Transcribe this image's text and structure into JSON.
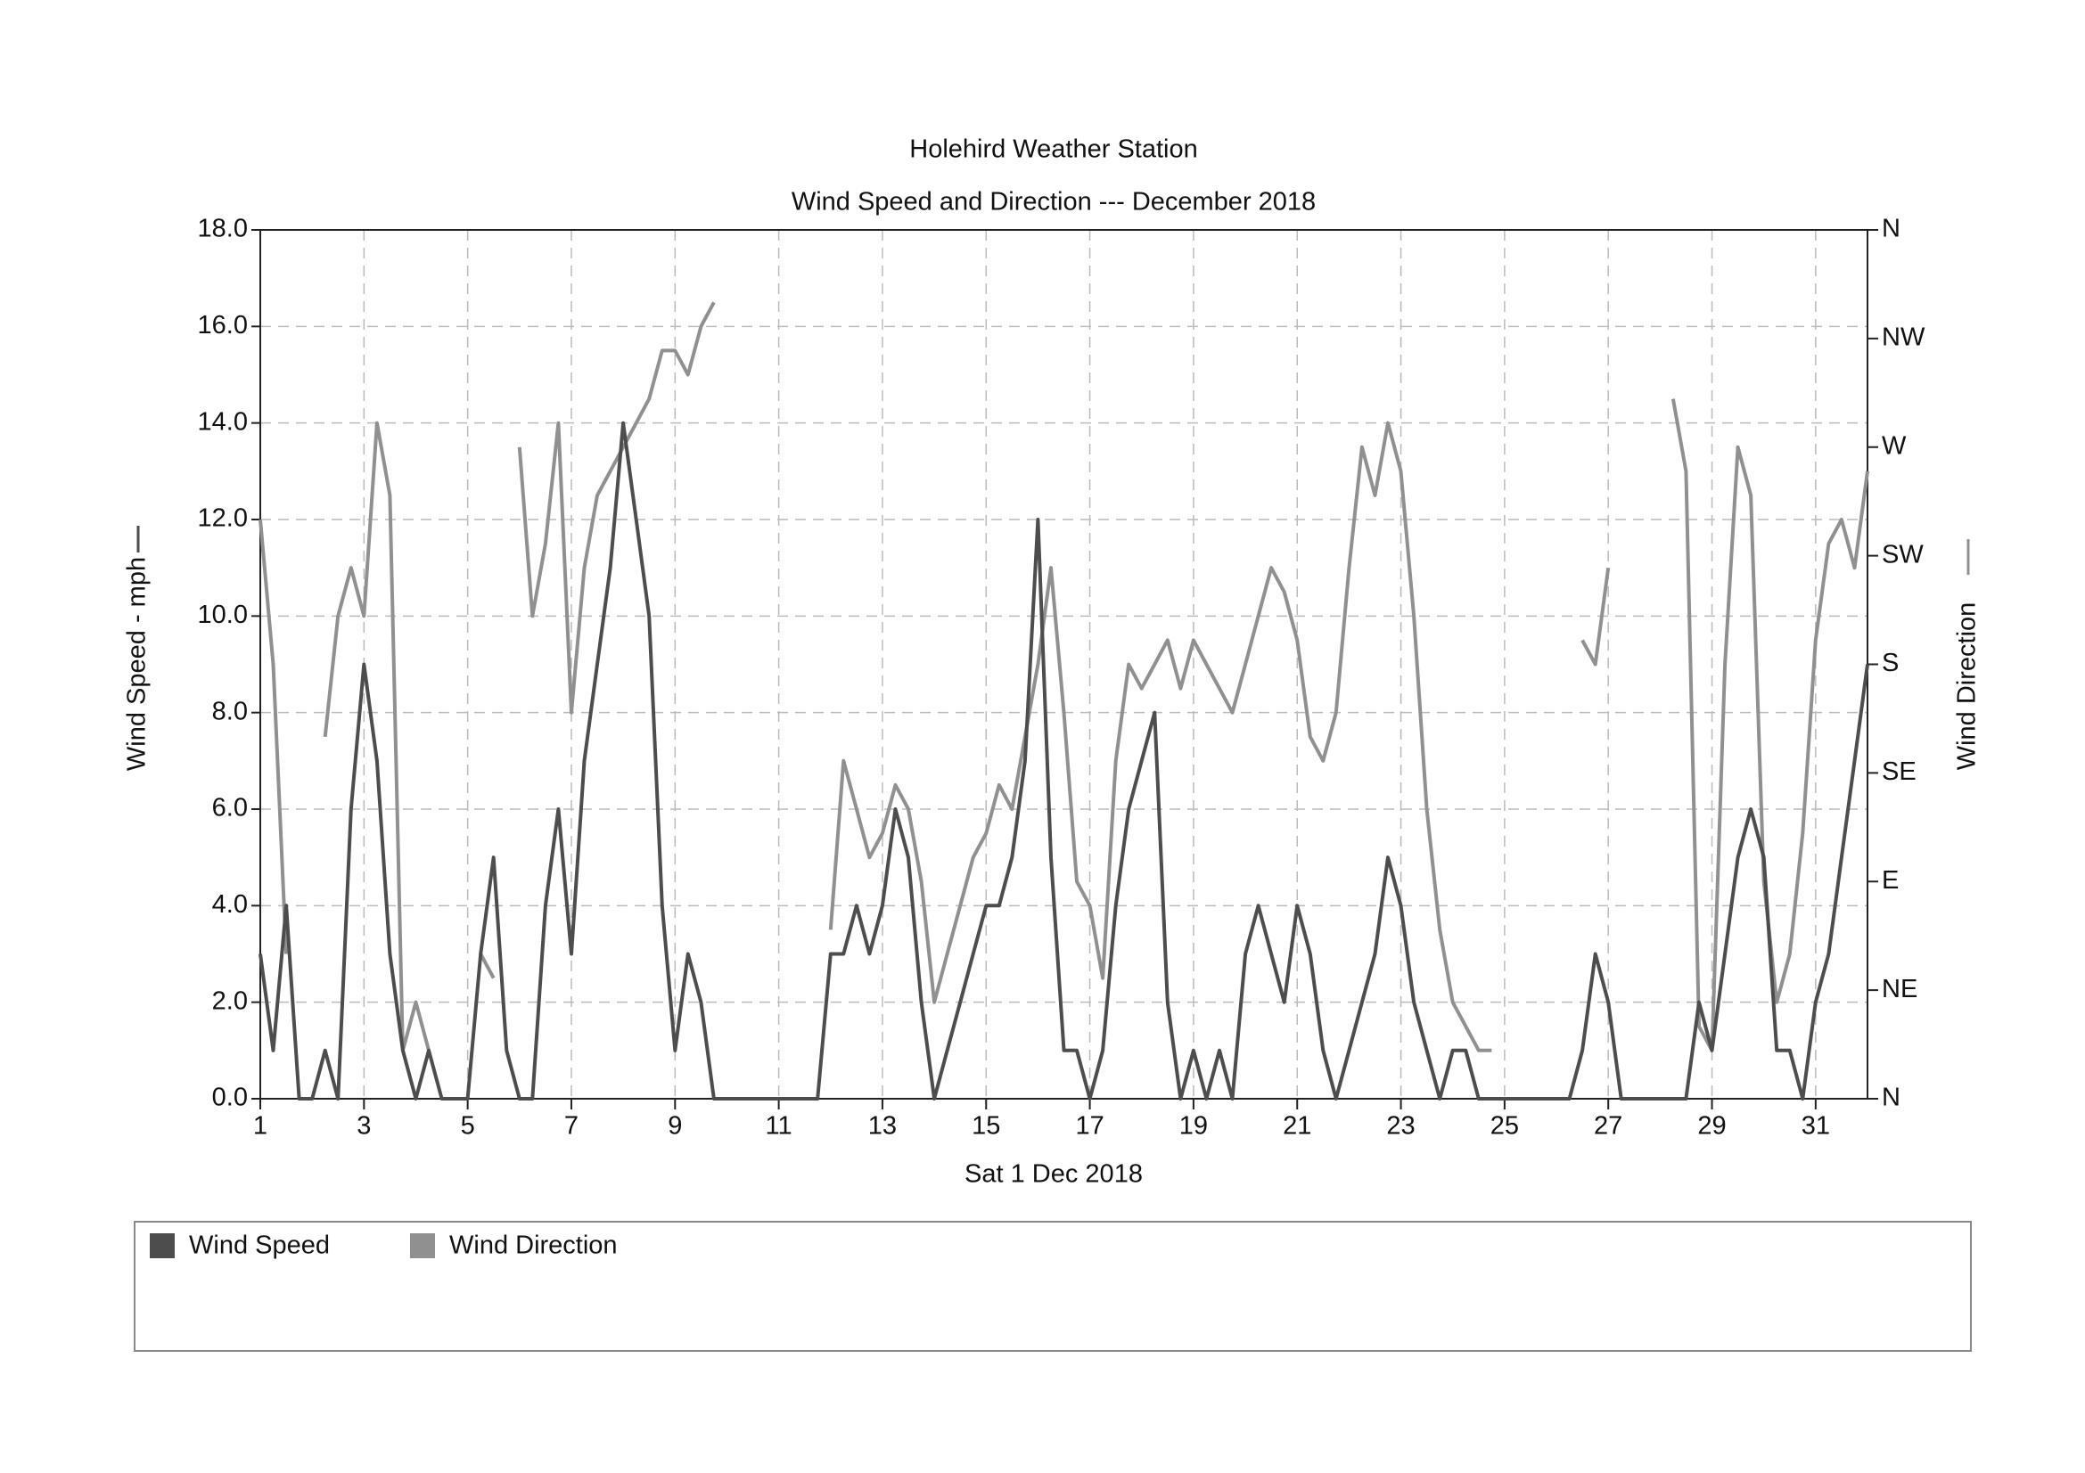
{
  "chart_data": {
    "type": "line",
    "title": "Holehird Weather Station",
    "subtitle": "Wind Speed and Direction --- December 2018",
    "x_label": "Sat 1 Dec 2018",
    "y_label": "Wind Speed - mph",
    "y2_label": "Wind Direction",
    "x": [
      1,
      1.25,
      1.5,
      1.75,
      2,
      2.25,
      2.5,
      2.75,
      3,
      3.25,
      3.5,
      3.75,
      4,
      4.25,
      4.5,
      4.75,
      5,
      5.25,
      5.5,
      5.75,
      6,
      6.25,
      6.5,
      6.75,
      7,
      7.25,
      7.5,
      7.75,
      8,
      8.25,
      8.5,
      8.75,
      9,
      9.25,
      9.5,
      9.75,
      10,
      10.25,
      10.5,
      10.75,
      11,
      11.25,
      11.5,
      11.75,
      12,
      12.25,
      12.5,
      12.75,
      13,
      13.25,
      13.5,
      13.75,
      14,
      14.25,
      14.5,
      14.75,
      15,
      15.25,
      15.5,
      15.75,
      16,
      16.25,
      16.5,
      16.75,
      17,
      17.25,
      17.5,
      17.75,
      18,
      18.25,
      18.5,
      18.75,
      19,
      19.25,
      19.5,
      19.75,
      20,
      20.25,
      20.5,
      20.75,
      21,
      21.25,
      21.5,
      21.75,
      22,
      22.25,
      22.5,
      22.75,
      23,
      23.25,
      23.5,
      23.75,
      24,
      24.25,
      24.5,
      24.75,
      25,
      25.25,
      25.5,
      25.75,
      26,
      26.25,
      26.5,
      26.75,
      27,
      27.25,
      27.5,
      27.75,
      28,
      28.25,
      28.5,
      28.75,
      29,
      29.25,
      29.5,
      29.75,
      30,
      30.25,
      30.5,
      30.75,
      31,
      31.25,
      31.5,
      31.75,
      32
    ],
    "series": [
      {
        "name": "Wind Speed",
        "color": "#4d4d4d",
        "axis": "y",
        "values": [
          3,
          1,
          4,
          0,
          0,
          1,
          0,
          6,
          9,
          7,
          3,
          1,
          0,
          1,
          0,
          0,
          0,
          3,
          5,
          1,
          0,
          0,
          4,
          6,
          3,
          7,
          9,
          11,
          14,
          12,
          10,
          4,
          1,
          3,
          2,
          0,
          0,
          0,
          0,
          0,
          0,
          0,
          0,
          0,
          3,
          3,
          4,
          3,
          4,
          6,
          5,
          2,
          0,
          1,
          2,
          3,
          4,
          4,
          5,
          7,
          12,
          5,
          1,
          1,
          0,
          1,
          4,
          6,
          7,
          8,
          2,
          0,
          1,
          0,
          1,
          0,
          3,
          4,
          3,
          2,
          4,
          3,
          1,
          0,
          1,
          2,
          3,
          5,
          4,
          2,
          1,
          0,
          1,
          1,
          0,
          0,
          0,
          0,
          0,
          0,
          0,
          0,
          1,
          3,
          2,
          0,
          0,
          0,
          0,
          0,
          0,
          2,
          1,
          3,
          5,
          6,
          5,
          1,
          1,
          0,
          2,
          3,
          5,
          7,
          9
        ]
      },
      {
        "name": "Wind Direction",
        "color": "#909090",
        "axis": "y2",
        "values": [
          240,
          180,
          60,
          null,
          null,
          150,
          200,
          220,
          200,
          280,
          250,
          20,
          40,
          20,
          null,
          null,
          null,
          60,
          50,
          null,
          270,
          200,
          230,
          280,
          160,
          220,
          250,
          260,
          270,
          280,
          290,
          310,
          310,
          300,
          320,
          330,
          null,
          null,
          null,
          null,
          null,
          null,
          null,
          null,
          70,
          140,
          120,
          100,
          110,
          130,
          120,
          90,
          40,
          60,
          80,
          100,
          110,
          130,
          120,
          150,
          180,
          220,
          160,
          90,
          80,
          50,
          140,
          180,
          170,
          180,
          190,
          170,
          190,
          180,
          170,
          160,
          180,
          200,
          220,
          210,
          190,
          150,
          140,
          160,
          220,
          270,
          250,
          280,
          260,
          200,
          120,
          70,
          40,
          30,
          20,
          20,
          null,
          null,
          null,
          null,
          null,
          null,
          190,
          180,
          220,
          null,
          null,
          null,
          null,
          290,
          260,
          30,
          20,
          180,
          270,
          250,
          90,
          40,
          60,
          110,
          190,
          230,
          240,
          220,
          260
        ]
      }
    ],
    "xlim": [
      1,
      32
    ],
    "xticks": [
      1,
      3,
      5,
      7,
      9,
      11,
      13,
      15,
      17,
      19,
      21,
      23,
      25,
      27,
      29,
      31
    ],
    "ylim": [
      0,
      18
    ],
    "yticks": [
      {
        "value": 0,
        "label": "0.0"
      },
      {
        "value": 2,
        "label": "2.0"
      },
      {
        "value": 4,
        "label": "4.0"
      },
      {
        "value": 6,
        "label": "6.0"
      },
      {
        "value": 8,
        "label": "8.0"
      },
      {
        "value": 10,
        "label": "10.0"
      },
      {
        "value": 12,
        "label": "12.0"
      },
      {
        "value": 14,
        "label": "14.0"
      },
      {
        "value": 16,
        "label": "16.0"
      },
      {
        "value": 18,
        "label": "18.0"
      }
    ],
    "y2lim": [
      0,
      360
    ],
    "y2ticks": [
      {
        "value": 0,
        "label": "N"
      },
      {
        "value": 45,
        "label": "NE"
      },
      {
        "value": 90,
        "label": "E"
      },
      {
        "value": 135,
        "label": "SE"
      },
      {
        "value": 180,
        "label": "S"
      },
      {
        "value": 225,
        "label": "SW"
      },
      {
        "value": 270,
        "label": "W"
      },
      {
        "value": 315,
        "label": "NW"
      },
      {
        "value": 360,
        "label": "N"
      }
    ],
    "grid": true
  }
}
